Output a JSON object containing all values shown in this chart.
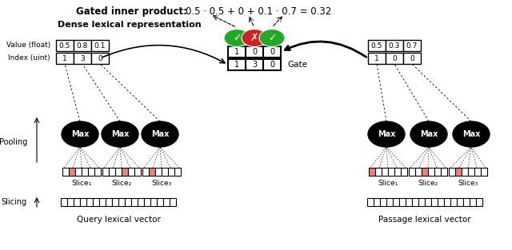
{
  "title": "Gated inner product:",
  "formula": "0.5 · 0.5 + 0 + 0.1 · 0.7 = 0.32",
  "dense_label": "Dense lexical representation",
  "query_label": "Query lexical vector",
  "passage_label": "Passage lexical vector",
  "pooling_label": "Pooling",
  "slicing_label": "Slicing",
  "gate_label": "Gate",
  "value_label": "Value (float)",
  "index_label": "Index (uint)",
  "query_value": [
    "0.5",
    "0.8",
    "0.1"
  ],
  "query_index": [
    "1",
    "3",
    "0"
  ],
  "passage_value": [
    "0.5",
    "0.3",
    "0.7"
  ],
  "passage_index": [
    "1",
    "0",
    "0"
  ],
  "gate_top": [
    "1",
    "0",
    "0"
  ],
  "gate_bottom": [
    "1",
    "3",
    "0"
  ],
  "slice_labels": [
    "Slice₁",
    "Slice₂",
    "Slice₃"
  ],
  "bg_color": "#ffffff",
  "pink_color": "#f08080",
  "green_color": "#22aa22",
  "red_color": "#cc2222",
  "figw": 6.4,
  "figh": 3.13,
  "dpi": 100
}
